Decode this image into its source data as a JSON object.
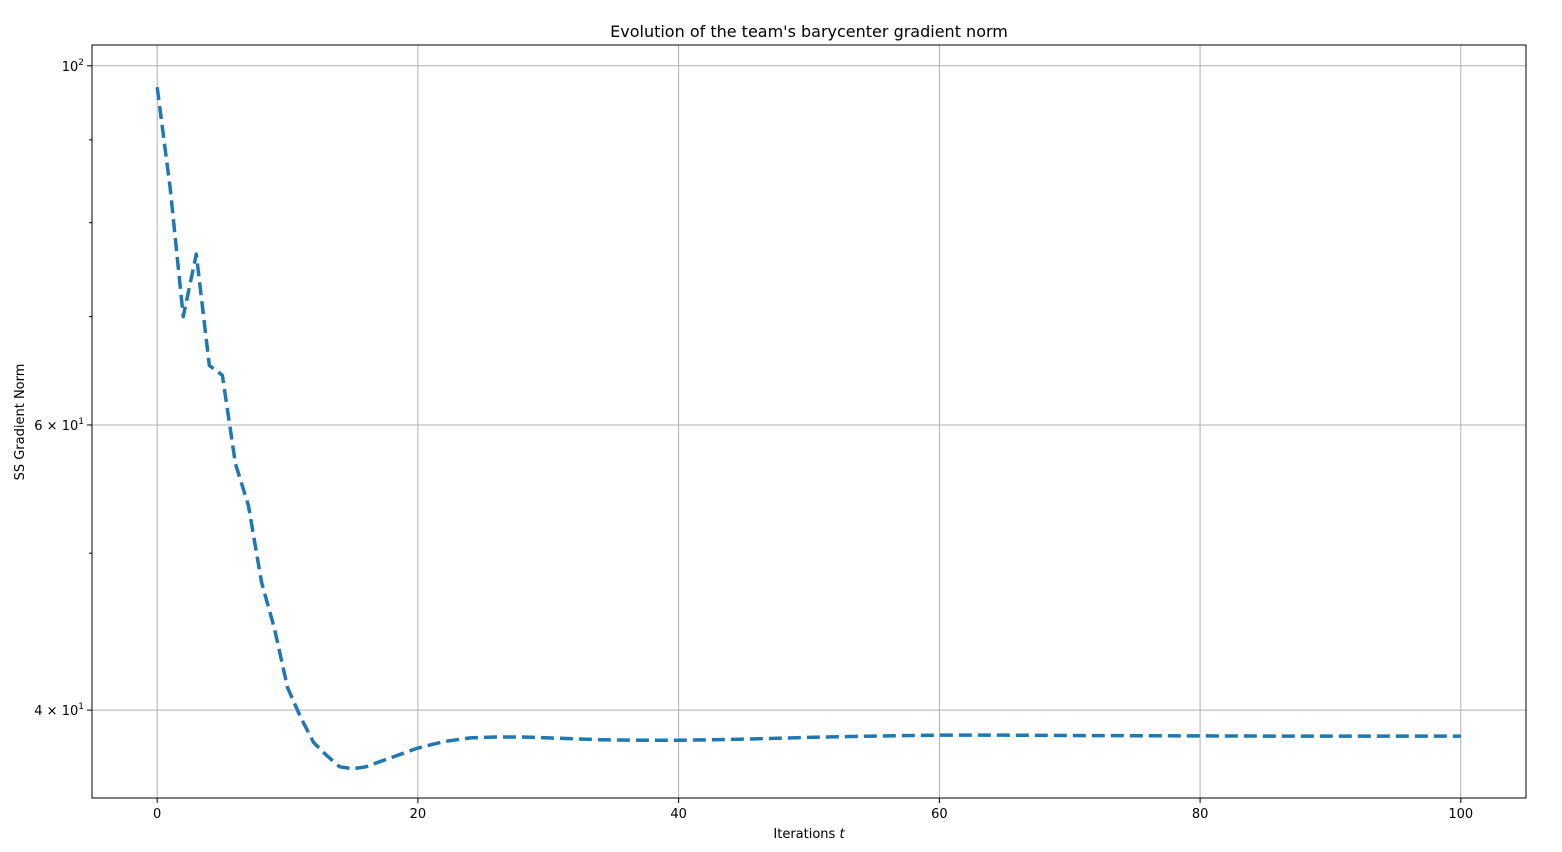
{
  "chart_data": {
    "type": "line",
    "title": "Evolution of the team's barycenter gradient norm",
    "xlabel": "Iterations",
    "xlabel_symbol": "t",
    "ylabel": "SS Gradient Norm",
    "xlim": [
      -5,
      105
    ],
    "ylim": [
      35.3,
      103.0
    ],
    "yscale": "log",
    "grid": true,
    "x_ticks": [
      {
        "value": 0,
        "label": "0"
      },
      {
        "value": 20,
        "label": "20"
      },
      {
        "value": 40,
        "label": "40"
      },
      {
        "value": 60,
        "label": "60"
      },
      {
        "value": 80,
        "label": "80"
      },
      {
        "value": 100,
        "label": "100"
      }
    ],
    "y_major_ticks": [
      {
        "value": 100,
        "base": "10",
        "exp": "2"
      },
      {
        "value": 60,
        "base": "6 × 10",
        "exp": "1"
      },
      {
        "value": 40,
        "base": "4 × 10",
        "exp": "1"
      }
    ],
    "y_minor_ticks": [
      90,
      80,
      70,
      50
    ],
    "series": [
      {
        "color": "#1f77b4",
        "x": [
          0,
          1,
          2,
          3,
          4,
          5,
          6,
          7,
          8,
          9,
          10,
          11,
          12,
          13,
          14,
          15,
          16,
          17,
          18,
          19,
          20,
          22,
          24,
          26,
          28,
          30,
          32,
          34,
          36,
          38,
          40,
          45,
          50,
          55,
          60,
          65,
          70,
          75,
          80,
          85,
          90,
          95,
          100
        ],
        "y": [
          97.0,
          84.0,
          70.0,
          76.5,
          65.3,
          64.4,
          56.8,
          53.5,
          48.0,
          44.9,
          41.3,
          39.6,
          38.2,
          37.5,
          36.9,
          36.8,
          36.9,
          37.15,
          37.4,
          37.65,
          37.9,
          38.25,
          38.45,
          38.5,
          38.5,
          38.45,
          38.4,
          38.35,
          38.33,
          38.32,
          38.32,
          38.38,
          38.48,
          38.55,
          38.6,
          38.6,
          38.58,
          38.57,
          38.56,
          38.55,
          38.55,
          38.55,
          38.55
        ]
      }
    ]
  }
}
